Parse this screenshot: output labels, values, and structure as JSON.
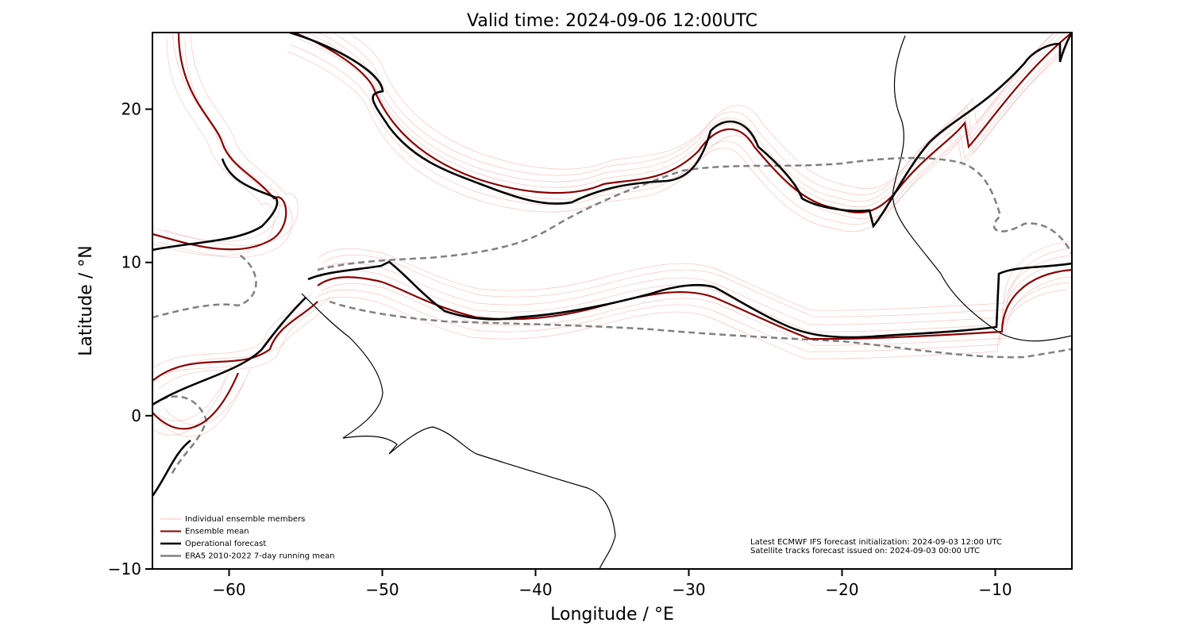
{
  "chart_data": {
    "type": "map",
    "title": "Valid time: 2024-09-06 12:00UTC",
    "xlabel": "Longitude / °E",
    "ylabel": "Latitude / °N",
    "xlim": [
      -65,
      -5
    ],
    "ylim": [
      -10,
      25
    ],
    "xticks": [
      {
        "value": -60,
        "label": "−60"
      },
      {
        "value": -50,
        "label": "−50"
      },
      {
        "value": -40,
        "label": "−40"
      },
      {
        "value": -30,
        "label": "−30"
      },
      {
        "value": -20,
        "label": "−20"
      },
      {
        "value": -10,
        "label": "−10"
      }
    ],
    "yticks": [
      {
        "value": -10,
        "label": "−10"
      },
      0,
      10,
      20
    ],
    "legend_position": "lower left",
    "legend": [
      {
        "name": "Individual ensemble members",
        "color": "#f08080",
        "width": 0.6
      },
      {
        "name": "Ensemble mean",
        "color": "#8b0000",
        "width": 2
      },
      {
        "name": "Operational forecast",
        "color": "#000000",
        "width": 2.5
      },
      {
        "name": "ERA5 2010-2022 7-day running mean",
        "color": "#808080",
        "width": 2.5
      }
    ],
    "annotations": [
      "Latest ECMWF IFS forecast initialization: 2024-09-03 12:00 UTC",
      "Satellite tracks forecast issued on: 2024-09-03 00:00 UTC"
    ]
  }
}
